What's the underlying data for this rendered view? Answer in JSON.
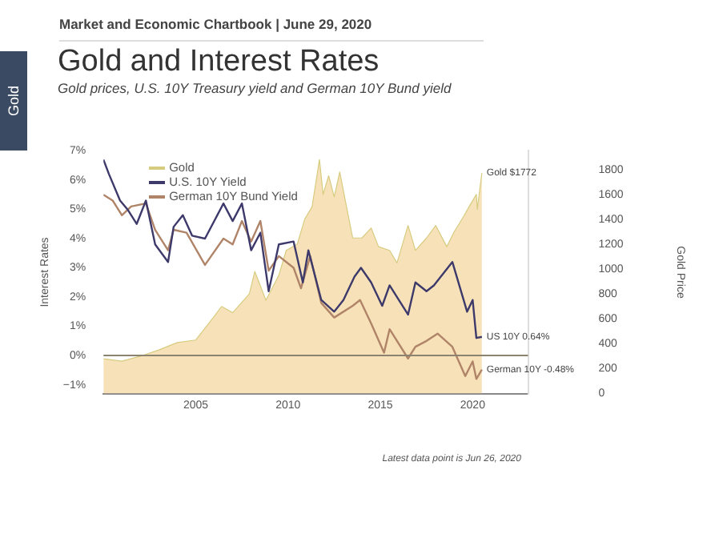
{
  "chart_data": {
    "type": "line",
    "title": "Gold and Interest Rates",
    "subtitle": "Gold prices, U.S. 10Y Treasury yield and German 10Y Bund yield",
    "ylabel": "Interest Rates",
    "y2label": "Gold Price",
    "annotations": [
      "Market and Economic Chartbook | June 29, 2020",
      "Gold",
      "Gold $1772",
      "US 10Y 0.64%",
      "German 10Y -0.48%",
      "Latest data point is Jun 26, 2020"
    ],
    "xlim": [
      2000,
      2023
    ],
    "xticks": [
      2005,
      2010,
      2015,
      2020
    ],
    "ylim": [
      -1.3,
      7
    ],
    "yticks": [
      {
        "value": -1,
        "label": "−1%"
      },
      {
        "value": 0,
        "label": "0%"
      },
      {
        "value": 1,
        "label": "1%"
      },
      {
        "value": 2,
        "label": "2%"
      },
      {
        "value": 3,
        "label": "3%"
      },
      {
        "value": 4,
        "label": "4%"
      },
      {
        "value": 5,
        "label": "5%"
      },
      {
        "value": 6,
        "label": "6%"
      },
      {
        "value": 7,
        "label": "7%"
      }
    ],
    "y2lim": [
      0,
      1950
    ],
    "y2ticks": [
      0,
      200,
      400,
      600,
      800,
      1000,
      1200,
      1400,
      1600,
      1800
    ],
    "grid": false,
    "legend": "top left",
    "marker": "none",
    "ref_lines": [
      {
        "axis": "y",
        "value": 0,
        "color": "#8c8270"
      }
    ],
    "series": [
      {
        "name": "Gold",
        "type": "area",
        "axis": "y2",
        "color": "#d6cc80",
        "x": [
          2000,
          2001,
          2002,
          2003,
          2004,
          2005,
          2006,
          2006.4,
          2007,
          2007.9,
          2008.2,
          2008.8,
          2009.5,
          2009.9,
          2010.5,
          2010.9,
          2011.3,
          2011.7,
          2011.9,
          2012.2,
          2012.5,
          2012.8,
          2013.3,
          2013.5,
          2014,
          2014.5,
          2014.9,
          2015.5,
          2015.9,
          2016.5,
          2016.9,
          2017.5,
          2018,
          2018.6,
          2019,
          2019.5,
          2019.8,
          2020.2,
          2020.25,
          2020.5
        ],
        "values": [
          280,
          260,
          300,
          350,
          410,
          430,
          620,
          700,
          650,
          800,
          980,
          750,
          950,
          1150,
          1200,
          1400,
          1500,
          1880,
          1600,
          1750,
          1580,
          1780,
          1400,
          1250,
          1250,
          1330,
          1180,
          1150,
          1050,
          1350,
          1150,
          1250,
          1350,
          1180,
          1300,
          1420,
          1500,
          1600,
          1480,
          1772
        ]
      },
      {
        "name": "U.S. 10Y Yield",
        "type": "line",
        "axis": "y",
        "color": "#3d3a6b",
        "x": [
          2000,
          2000.3,
          2000.9,
          2001.3,
          2001.8,
          2002.3,
          2002.8,
          2003.5,
          2003.8,
          2004.3,
          2004.8,
          2005.5,
          2006.5,
          2007,
          2007.5,
          2008,
          2008.5,
          2008.95,
          2009.5,
          2010.3,
          2010.8,
          2011.1,
          2011.8,
          2012.5,
          2013,
          2013.6,
          2013.95,
          2014.5,
          2015.1,
          2015.5,
          2016.5,
          2016.9,
          2017.5,
          2017.9,
          2018.9,
          2019.7,
          2020,
          2020.2,
          2020.5
        ],
        "values": [
          6.7,
          6.2,
          5.3,
          5.0,
          4.5,
          5.3,
          3.8,
          3.2,
          4.4,
          4.8,
          4.1,
          4.0,
          5.2,
          4.6,
          5.2,
          3.6,
          4.2,
          2.2,
          3.8,
          3.9,
          2.5,
          3.6,
          1.9,
          1.5,
          1.9,
          2.7,
          3.0,
          2.5,
          1.7,
          2.4,
          1.4,
          2.5,
          2.2,
          2.4,
          3.2,
          1.5,
          1.9,
          0.6,
          0.64
        ]
      },
      {
        "name": "German 10Y Bund Yield",
        "type": "line",
        "axis": "y",
        "color": "#b08468",
        "x": [
          2000,
          2000.5,
          2001,
          2001.5,
          2002.3,
          2002.8,
          2003.5,
          2003.8,
          2004.5,
          2005.5,
          2006.5,
          2007,
          2007.5,
          2008,
          2008.5,
          2008.95,
          2009.5,
          2010.3,
          2010.7,
          2011.2,
          2011.8,
          2012.5,
          2013.5,
          2013.9,
          2014.5,
          2015.2,
          2015.5,
          2016.5,
          2016.9,
          2017.5,
          2018.1,
          2018.9,
          2019.6,
          2020,
          2020.2,
          2020.5
        ],
        "values": [
          5.5,
          5.3,
          4.8,
          5.1,
          5.2,
          4.3,
          3.6,
          4.3,
          4.2,
          3.1,
          4.0,
          3.8,
          4.6,
          3.9,
          4.6,
          2.9,
          3.4,
          3.0,
          2.3,
          3.4,
          1.8,
          1.3,
          1.7,
          1.9,
          1.1,
          0.1,
          0.9,
          -0.1,
          0.3,
          0.5,
          0.75,
          0.3,
          -0.7,
          -0.2,
          -0.8,
          -0.48
        ]
      }
    ]
  }
}
